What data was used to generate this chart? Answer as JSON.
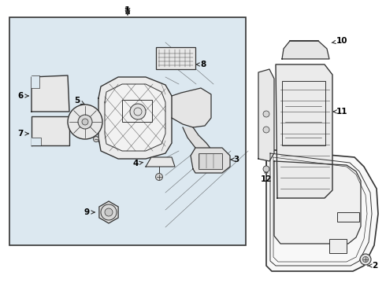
{
  "background_color": "#ffffff",
  "diagram_bg_color": "#dce8f0",
  "line_color": "#333333",
  "text_color": "#000000",
  "fig_width": 4.9,
  "fig_height": 3.6,
  "dpi": 100
}
